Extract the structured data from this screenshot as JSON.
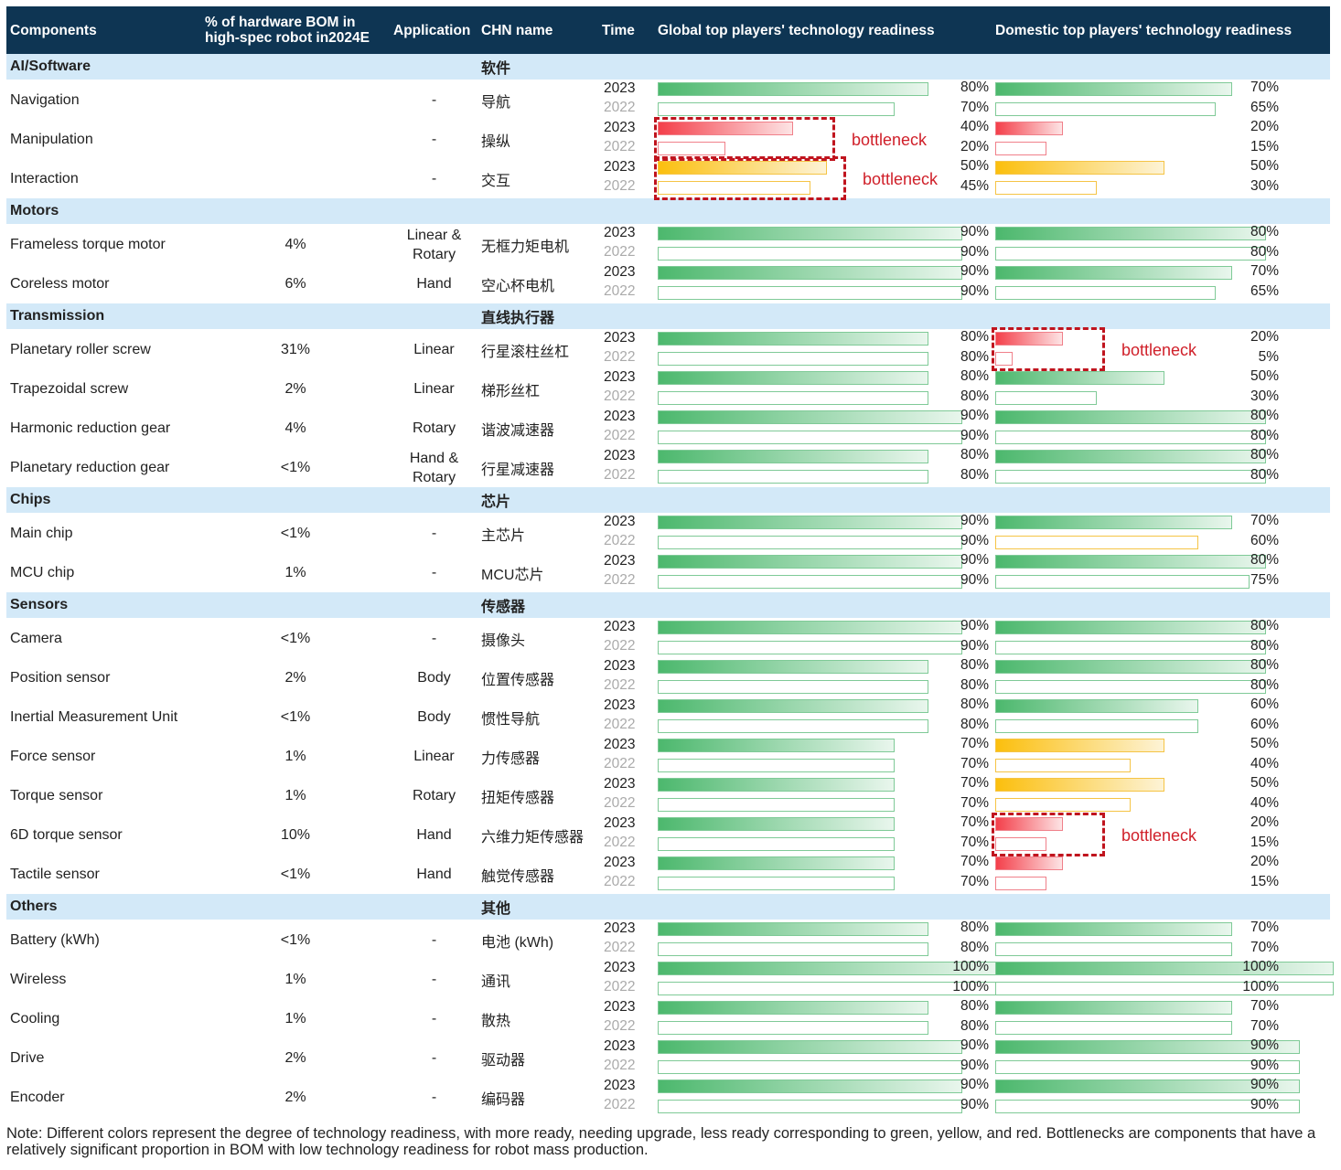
{
  "header": {
    "components": "Components",
    "bom": "% of hardware BOM in high-spec robot in2024E",
    "application": "Application",
    "chn_name": "CHN name",
    "time": "Time",
    "global": "Global top players' technology readiness",
    "domestic": "Domestic top players' technology readiness"
  },
  "years": {
    "current": "2023",
    "previous": "2022"
  },
  "colors": {
    "green": "#4cb86d",
    "yellow": "#fbbf0e",
    "red": "#f43f4a",
    "bottleneck": "#c0141e",
    "header_bg": "#0e3553",
    "section_bg": "#d3e9f8"
  },
  "bottleneck_label": "bottleneck",
  "note": "Note: Different colors represent the degree of technology readiness, with more ready, needing upgrade, less ready corresponding to green, yellow, and red. Bottlenecks are components that have a relatively significant proportion in BOM with low technology readiness for robot mass production.",
  "chart_data": {
    "type": "table",
    "title": "Humanoid robot component technology readiness",
    "value_unit": "%",
    "xlim": [
      0,
      100
    ],
    "sections": [
      {
        "name": "AI/Software",
        "chn": "软件",
        "rows": [
          {
            "name": "Navigation",
            "bom": "",
            "app": "-",
            "chn": "导航",
            "global": {
              "y2023": 80,
              "y2022": 70,
              "color": "green"
            },
            "domestic": {
              "y2023": 70,
              "y2022": 65,
              "color": "green"
            }
          },
          {
            "name": "Manipulation",
            "bom": "",
            "app": "-",
            "chn": "操纵",
            "global": {
              "y2023": 40,
              "y2022": 20,
              "color": "red",
              "bottleneck": true
            },
            "domestic": {
              "y2023": 20,
              "y2022": 15,
              "color": "red"
            }
          },
          {
            "name": "Interaction",
            "bom": "",
            "app": "-",
            "chn": "交互",
            "global": {
              "y2023": 50,
              "y2022": 45,
              "color": "yellow",
              "bottleneck": true
            },
            "domestic": {
              "y2023": 50,
              "y2022": 30,
              "color": "yellow"
            }
          }
        ]
      },
      {
        "name": "Motors",
        "chn": "",
        "rows": [
          {
            "name": "Frameless torque motor",
            "bom": "4%",
            "app": "Linear & Rotary",
            "chn": "无框力矩电机",
            "global": {
              "y2023": 90,
              "y2022": 90,
              "color": "green"
            },
            "domestic": {
              "y2023": 80,
              "y2022": 80,
              "color": "green"
            }
          },
          {
            "name": "Coreless motor",
            "bom": "6%",
            "app": "Hand",
            "chn": "空心杯电机",
            "global": {
              "y2023": 90,
              "y2022": 90,
              "color": "green"
            },
            "domestic": {
              "y2023": 70,
              "y2022": 65,
              "color": "green"
            }
          }
        ]
      },
      {
        "name": "Transmission",
        "chn": "直线执行器",
        "rows": [
          {
            "name": "Planetary roller screw",
            "bom": "31%",
            "app": "Linear",
            "chn": "行星滚柱丝杠",
            "global": {
              "y2023": 80,
              "y2022": 80,
              "color": "green"
            },
            "domestic": {
              "y2023": 20,
              "y2022": 5,
              "color": "red",
              "bottleneck": true
            }
          },
          {
            "name": "Trapezoidal screw",
            "bom": "2%",
            "app": "Linear",
            "chn": "梯形丝杠",
            "global": {
              "y2023": 80,
              "y2022": 80,
              "color": "green"
            },
            "domestic": {
              "y2023": 50,
              "y2022": 30,
              "color": "green"
            }
          },
          {
            "name": "Harmonic reduction gear",
            "bom": "4%",
            "app": "Rotary",
            "chn": "谐波减速器",
            "global": {
              "y2023": 90,
              "y2022": 90,
              "color": "green"
            },
            "domestic": {
              "y2023": 80,
              "y2022": 80,
              "color": "green"
            }
          },
          {
            "name": "Planetary reduction gear",
            "bom": "<1%",
            "app": "Hand & Rotary",
            "chn": "行星减速器",
            "global": {
              "y2023": 80,
              "y2022": 80,
              "color": "green"
            },
            "domestic": {
              "y2023": 80,
              "y2022": 80,
              "color": "green"
            }
          }
        ]
      },
      {
        "name": "Chips",
        "chn": "芯片",
        "rows": [
          {
            "name": "Main chip",
            "bom": "<1%",
            "app": "-",
            "chn": "主芯片",
            "global": {
              "y2023": 90,
              "y2022": 90,
              "color": "green"
            },
            "domestic": {
              "y2023": 70,
              "y2022": 60,
              "color": "green",
              "color2022": "yellow"
            }
          },
          {
            "name": "MCU chip",
            "bom": "1%",
            "app": "-",
            "chn": "MCU芯片",
            "global": {
              "y2023": 90,
              "y2022": 90,
              "color": "green"
            },
            "domestic": {
              "y2023": 80,
              "y2022": 75,
              "color": "green"
            }
          }
        ]
      },
      {
        "name": "Sensors",
        "chn": "传感器",
        "rows": [
          {
            "name": "Camera",
            "bom": "<1%",
            "app": "-",
            "chn": "摄像头",
            "global": {
              "y2023": 90,
              "y2022": 90,
              "color": "green"
            },
            "domestic": {
              "y2023": 80,
              "y2022": 80,
              "color": "green"
            }
          },
          {
            "name": "Position sensor",
            "bom": "2%",
            "app": "Body",
            "chn": "位置传感器",
            "global": {
              "y2023": 80,
              "y2022": 80,
              "color": "green"
            },
            "domestic": {
              "y2023": 80,
              "y2022": 80,
              "color": "green"
            }
          },
          {
            "name": "Inertial Measurement Unit",
            "bom": "<1%",
            "app": "Body",
            "chn": "惯性导航",
            "global": {
              "y2023": 80,
              "y2022": 80,
              "color": "green"
            },
            "domestic": {
              "y2023": 60,
              "y2022": 60,
              "color": "green"
            }
          },
          {
            "name": "Force sensor",
            "bom": "1%",
            "app": "Linear",
            "chn": "力传感器",
            "global": {
              "y2023": 70,
              "y2022": 70,
              "color": "green"
            },
            "domestic": {
              "y2023": 50,
              "y2022": 40,
              "color": "yellow"
            }
          },
          {
            "name": "Torque sensor",
            "bom": "1%",
            "app": "Rotary",
            "chn": "扭矩传感器",
            "global": {
              "y2023": 70,
              "y2022": 70,
              "color": "green"
            },
            "domestic": {
              "y2023": 50,
              "y2022": 40,
              "color": "yellow"
            }
          },
          {
            "name": "6D torque sensor",
            "bom": "10%",
            "app": "Hand",
            "chn": "六维力矩传感器",
            "global": {
              "y2023": 70,
              "y2022": 70,
              "color": "green"
            },
            "domestic": {
              "y2023": 20,
              "y2022": 15,
              "color": "red",
              "bottleneck": true
            }
          },
          {
            "name": "Tactile sensor",
            "bom": "<1%",
            "app": "Hand",
            "chn": "触觉传感器",
            "global": {
              "y2023": 70,
              "y2022": 70,
              "color": "green"
            },
            "domestic": {
              "y2023": 20,
              "y2022": 15,
              "color": "red"
            }
          }
        ]
      },
      {
        "name": "Others",
        "chn": "其他",
        "rows": [
          {
            "name": "Battery (kWh)",
            "bom": "<1%",
            "app": "-",
            "chn": "电池 (kWh)",
            "global": {
              "y2023": 80,
              "y2022": 80,
              "color": "green"
            },
            "domestic": {
              "y2023": 70,
              "y2022": 70,
              "color": "green"
            }
          },
          {
            "name": "Wireless",
            "bom": "1%",
            "app": "-",
            "chn": "通讯",
            "global": {
              "y2023": 100,
              "y2022": 100,
              "color": "green"
            },
            "domestic": {
              "y2023": 100,
              "y2022": 100,
              "color": "green"
            }
          },
          {
            "name": "Cooling",
            "bom": "1%",
            "app": "-",
            "chn": "散热",
            "global": {
              "y2023": 80,
              "y2022": 80,
              "color": "green"
            },
            "domestic": {
              "y2023": 70,
              "y2022": 70,
              "color": "green"
            }
          },
          {
            "name": "Drive",
            "bom": "2%",
            "app": "-",
            "chn": "驱动器",
            "global": {
              "y2023": 90,
              "y2022": 90,
              "color": "green"
            },
            "domestic": {
              "y2023": 90,
              "y2022": 90,
              "color": "green"
            }
          },
          {
            "name": "Encoder",
            "bom": "2%",
            "app": "-",
            "chn": "编码器",
            "global": {
              "y2023": 90,
              "y2022": 90,
              "color": "green"
            },
            "domestic": {
              "y2023": 90,
              "y2022": 90,
              "color": "green"
            }
          }
        ]
      }
    ]
  }
}
